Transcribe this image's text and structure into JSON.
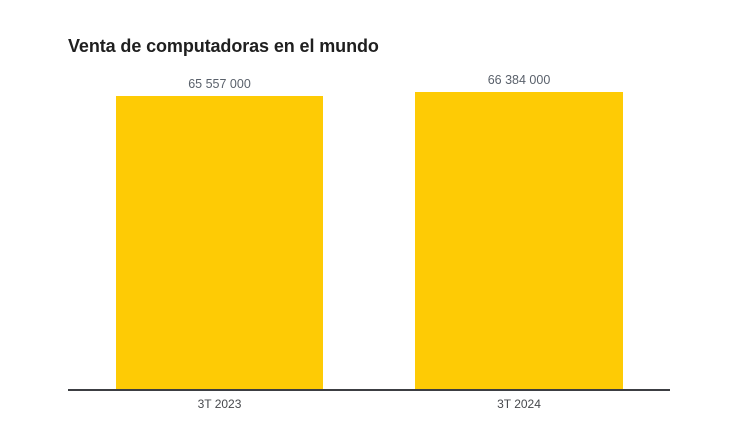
{
  "chart_data": {
    "type": "bar",
    "title": "Venta de computadoras en el mundo",
    "categories": [
      "3T 2023",
      "3T 2024"
    ],
    "values": [
      65557000,
      66384000
    ],
    "value_labels": [
      "65 557 000",
      "66 384 000"
    ],
    "xlabel": "",
    "ylabel": "",
    "ylim": [
      0,
      66384000
    ],
    "grid": false,
    "legend": "none",
    "bar_color": "#fecb05"
  },
  "colors": {
    "bar": "#fecb05",
    "title_text": "#1f1f1f",
    "value_label_text": "#5a616b",
    "category_label_text": "#47494d",
    "axis_line": "#3c3e42",
    "background": "#ffffff"
  }
}
